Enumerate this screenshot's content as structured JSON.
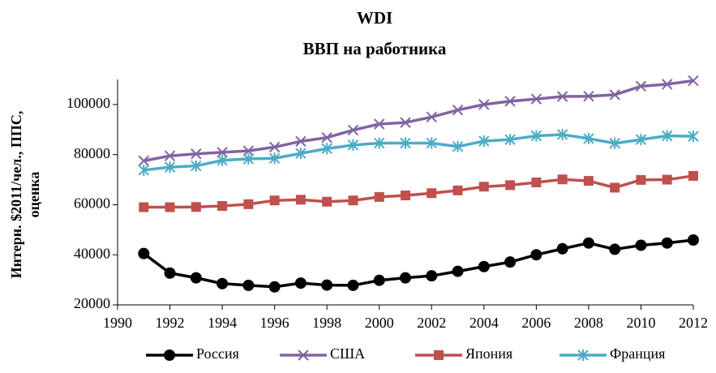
{
  "chart_data": {
    "type": "line",
    "title": "WDI",
    "subtitle": "ВВП на работника",
    "y_label": [
      "Интерн. $2011/чел.,  ППС,",
      "оценка"
    ],
    "x": [
      1991,
      1992,
      1993,
      1994,
      1995,
      1996,
      1997,
      1998,
      1999,
      2000,
      2001,
      2002,
      2003,
      2004,
      2005,
      2006,
      2007,
      2008,
      2009,
      2010,
      2011,
      2012
    ],
    "series": [
      {
        "name": "Россия",
        "color": "#000000",
        "marker": "circle",
        "values": [
          40500,
          32700,
          30800,
          28500,
          27800,
          27200,
          28700,
          27900,
          27800,
          29800,
          30800,
          31600,
          33400,
          35300,
          37100,
          40000,
          42400,
          44700,
          42200,
          43800,
          44700,
          45900
        ]
      },
      {
        "name": "США",
        "color": "#8064a2",
        "marker": "x",
        "values": [
          77500,
          79500,
          80300,
          80900,
          81500,
          83000,
          85300,
          86800,
          89800,
          92200,
          92800,
          95000,
          97800,
          100000,
          101300,
          102200,
          103200,
          103300,
          103900,
          107300,
          108100,
          109500
        ]
      },
      {
        "name": "Япония",
        "color": "#c0504d",
        "marker": "square",
        "values": [
          59000,
          59000,
          59100,
          59500,
          60200,
          61700,
          62000,
          61200,
          61700,
          63100,
          63700,
          64600,
          65700,
          67200,
          67800,
          68900,
          70100,
          69500,
          66800,
          69900,
          70000,
          71500
        ]
      },
      {
        "name": "Франция",
        "color": "#4bacc6",
        "marker": "asterisk",
        "values": [
          73800,
          75000,
          75500,
          77700,
          78300,
          78500,
          80500,
          82400,
          83800,
          84600,
          84600,
          84600,
          83200,
          85400,
          86000,
          87500,
          88000,
          86400,
          84500,
          86000,
          87500,
          87300
        ]
      }
    ],
    "xlim": [
      1990,
      2012
    ],
    "xticks": [
      1990,
      1992,
      1994,
      1996,
      1998,
      2000,
      2002,
      2004,
      2006,
      2008,
      2010,
      2012
    ],
    "ylim": [
      20000,
      110000
    ],
    "yticks": [
      20000,
      40000,
      60000,
      80000,
      100000
    ],
    "legend": "bottom"
  }
}
